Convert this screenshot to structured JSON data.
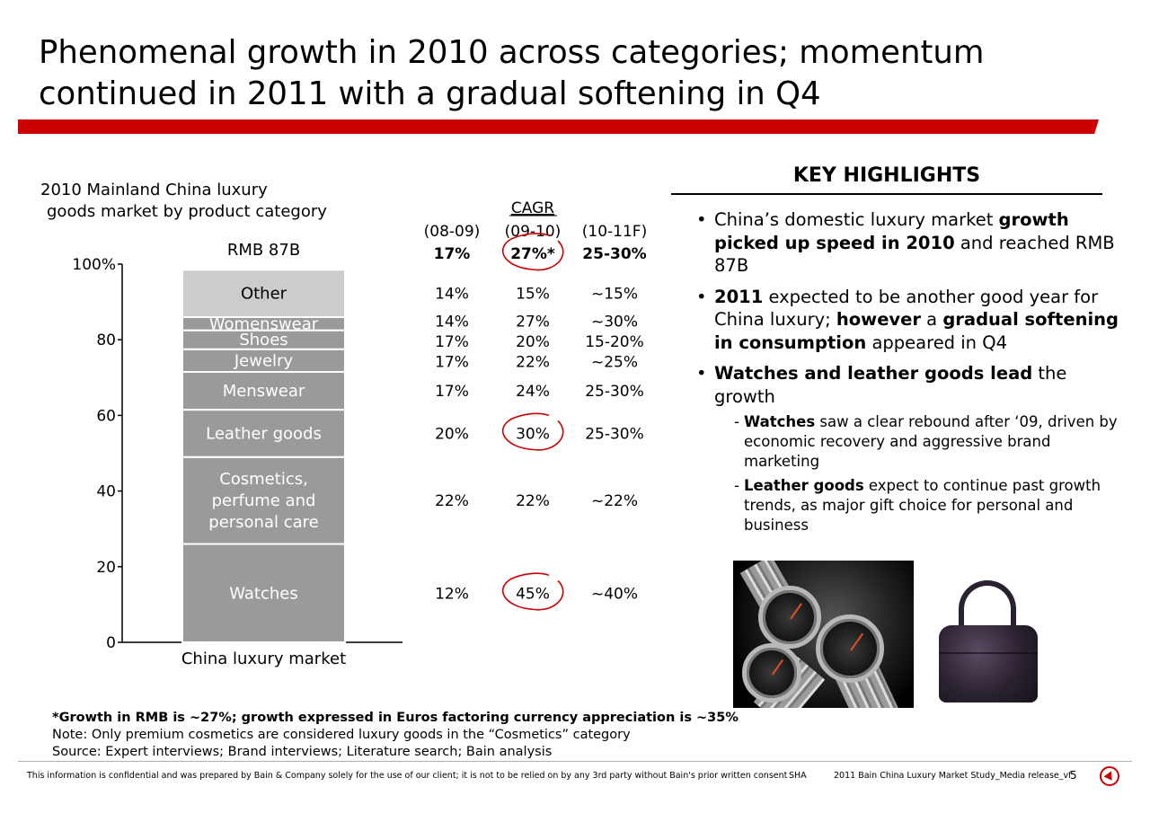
{
  "slide": {
    "title_line1": "Phenomenal growth in 2010 across categories; momentum",
    "title_line2": "continued in 2011 with a gradual softening in Q4",
    "accent_color": "#cc0000"
  },
  "chart_title": {
    "line1": "2010 Mainland China luxury",
    "line2": "goods market by product category"
  },
  "chart_data": {
    "type": "bar",
    "stacked": true,
    "title": "2010 Mainland China luxury goods market by product category",
    "total_label": "RMB 87B",
    "categories": [
      "China luxury market"
    ],
    "xlabel": "China luxury market",
    "ylim": [
      0,
      100
    ],
    "yticks": [
      {
        "value": 0,
        "label": "0"
      },
      {
        "value": 20,
        "label": "20"
      },
      {
        "value": 40,
        "label": "40"
      },
      {
        "value": 60,
        "label": "60"
      },
      {
        "value": 80,
        "label": "80"
      },
      {
        "value": 100,
        "label": "100%"
      }
    ],
    "series": [
      {
        "name": "Watches",
        "values": [
          26
        ],
        "color": "#9a9a9a",
        "label_color": "#ffffff"
      },
      {
        "name": "Cosmetics, perfume and personal care",
        "label_lines": [
          "Cosmetics,",
          "perfume and",
          "personal care"
        ],
        "values": [
          23
        ],
        "color": "#9a9a9a",
        "label_color": "#ffffff"
      },
      {
        "name": "Leather goods",
        "values": [
          12.5
        ],
        "color": "#9a9a9a",
        "label_color": "#ffffff"
      },
      {
        "name": "Menswear",
        "values": [
          10
        ],
        "color": "#9a9a9a",
        "label_color": "#ffffff"
      },
      {
        "name": "Jewelry",
        "values": [
          6
        ],
        "color": "#9a9a9a",
        "label_color": "#ffffff"
      },
      {
        "name": "Shoes",
        "values": [
          5
        ],
        "color": "#9a9a9a",
        "label_color": "#ffffff"
      },
      {
        "name": "Womenswear",
        "values": [
          3.5
        ],
        "color": "#9a9a9a",
        "label_color": "#ffffff"
      },
      {
        "name": "Other",
        "values": [
          12.5
        ],
        "color": "#cccccc",
        "label_color": "#000000"
      }
    ],
    "cagr_table": {
      "header": "CAGR",
      "periods": [
        "(08-09)",
        "(09-10)",
        "(10-11F)"
      ],
      "total_row": [
        "17%",
        "27%*",
        "25-30%"
      ],
      "rows": [
        {
          "category": "Other",
          "values": [
            "14%",
            "15%",
            "~15%"
          ]
        },
        {
          "category": "Womenswear",
          "values": [
            "14%",
            "27%",
            "~30%"
          ]
        },
        {
          "category": "Shoes",
          "values": [
            "17%",
            "20%",
            "15-20%"
          ]
        },
        {
          "category": "Jewelry",
          "values": [
            "17%",
            "22%",
            "~25%"
          ]
        },
        {
          "category": "Menswear",
          "values": [
            "17%",
            "24%",
            "25-30%"
          ]
        },
        {
          "category": "Leather goods",
          "values": [
            "20%",
            "30%",
            "25-30%"
          ]
        },
        {
          "category": "Cosmetics, perfume and personal care",
          "values": [
            "22%",
            "22%",
            "~22%"
          ]
        },
        {
          "category": "Watches",
          "values": [
            "12%",
            "45%",
            "~40%"
          ]
        }
      ],
      "circled": [
        "total_row.09-10",
        "Leather goods.09-10",
        "Watches.09-10"
      ],
      "circle_color": "#cc0000"
    }
  },
  "highlights": {
    "title": "KEY HIGHLIGHTS",
    "b1_pre": "China’s domestic luxury market ",
    "b1_bold": "growth picked up speed in 2010",
    "b1_post": " and reached RMB 87B",
    "b2_bold1": "2011",
    "b2_mid1": " expected to be another good year for China luxury; ",
    "b2_bold2": "however",
    "b2_mid2": " a ",
    "b2_bold3": "gradual softening in consumption",
    "b2_post": " appeared in Q4",
    "b3_bold": "Watches and leather goods lead",
    "b3_post": " the growth",
    "s1_bold": "Watches",
    "s1_text": " saw a clear rebound after ‘09, driven by economic recovery and aggressive brand marketing",
    "s2_bold": "Leather goods",
    "s2_text": " expect to continue past growth trends, as major gift choice for personal and business"
  },
  "footnotes": {
    "line1": "*Growth in RMB is ~27%; growth expressed in Euros factoring currency appreciation is ~35%",
    "line2": "Note: Only premium cosmetics are considered luxury goods in the “Cosmetics” category",
    "line3": "Source: Expert interviews; Brand interviews; Literature search; Bain analysis"
  },
  "footer": {
    "confidential": "This information is confidential and was prepared by Bain & Company solely for the use of our client; it is not to be relied on by any 3rd party without Bain's prior written consent",
    "code": "SHA",
    "doc": "2011 Bain China Luxury Market Study_Media release_vf",
    "page": "5"
  }
}
